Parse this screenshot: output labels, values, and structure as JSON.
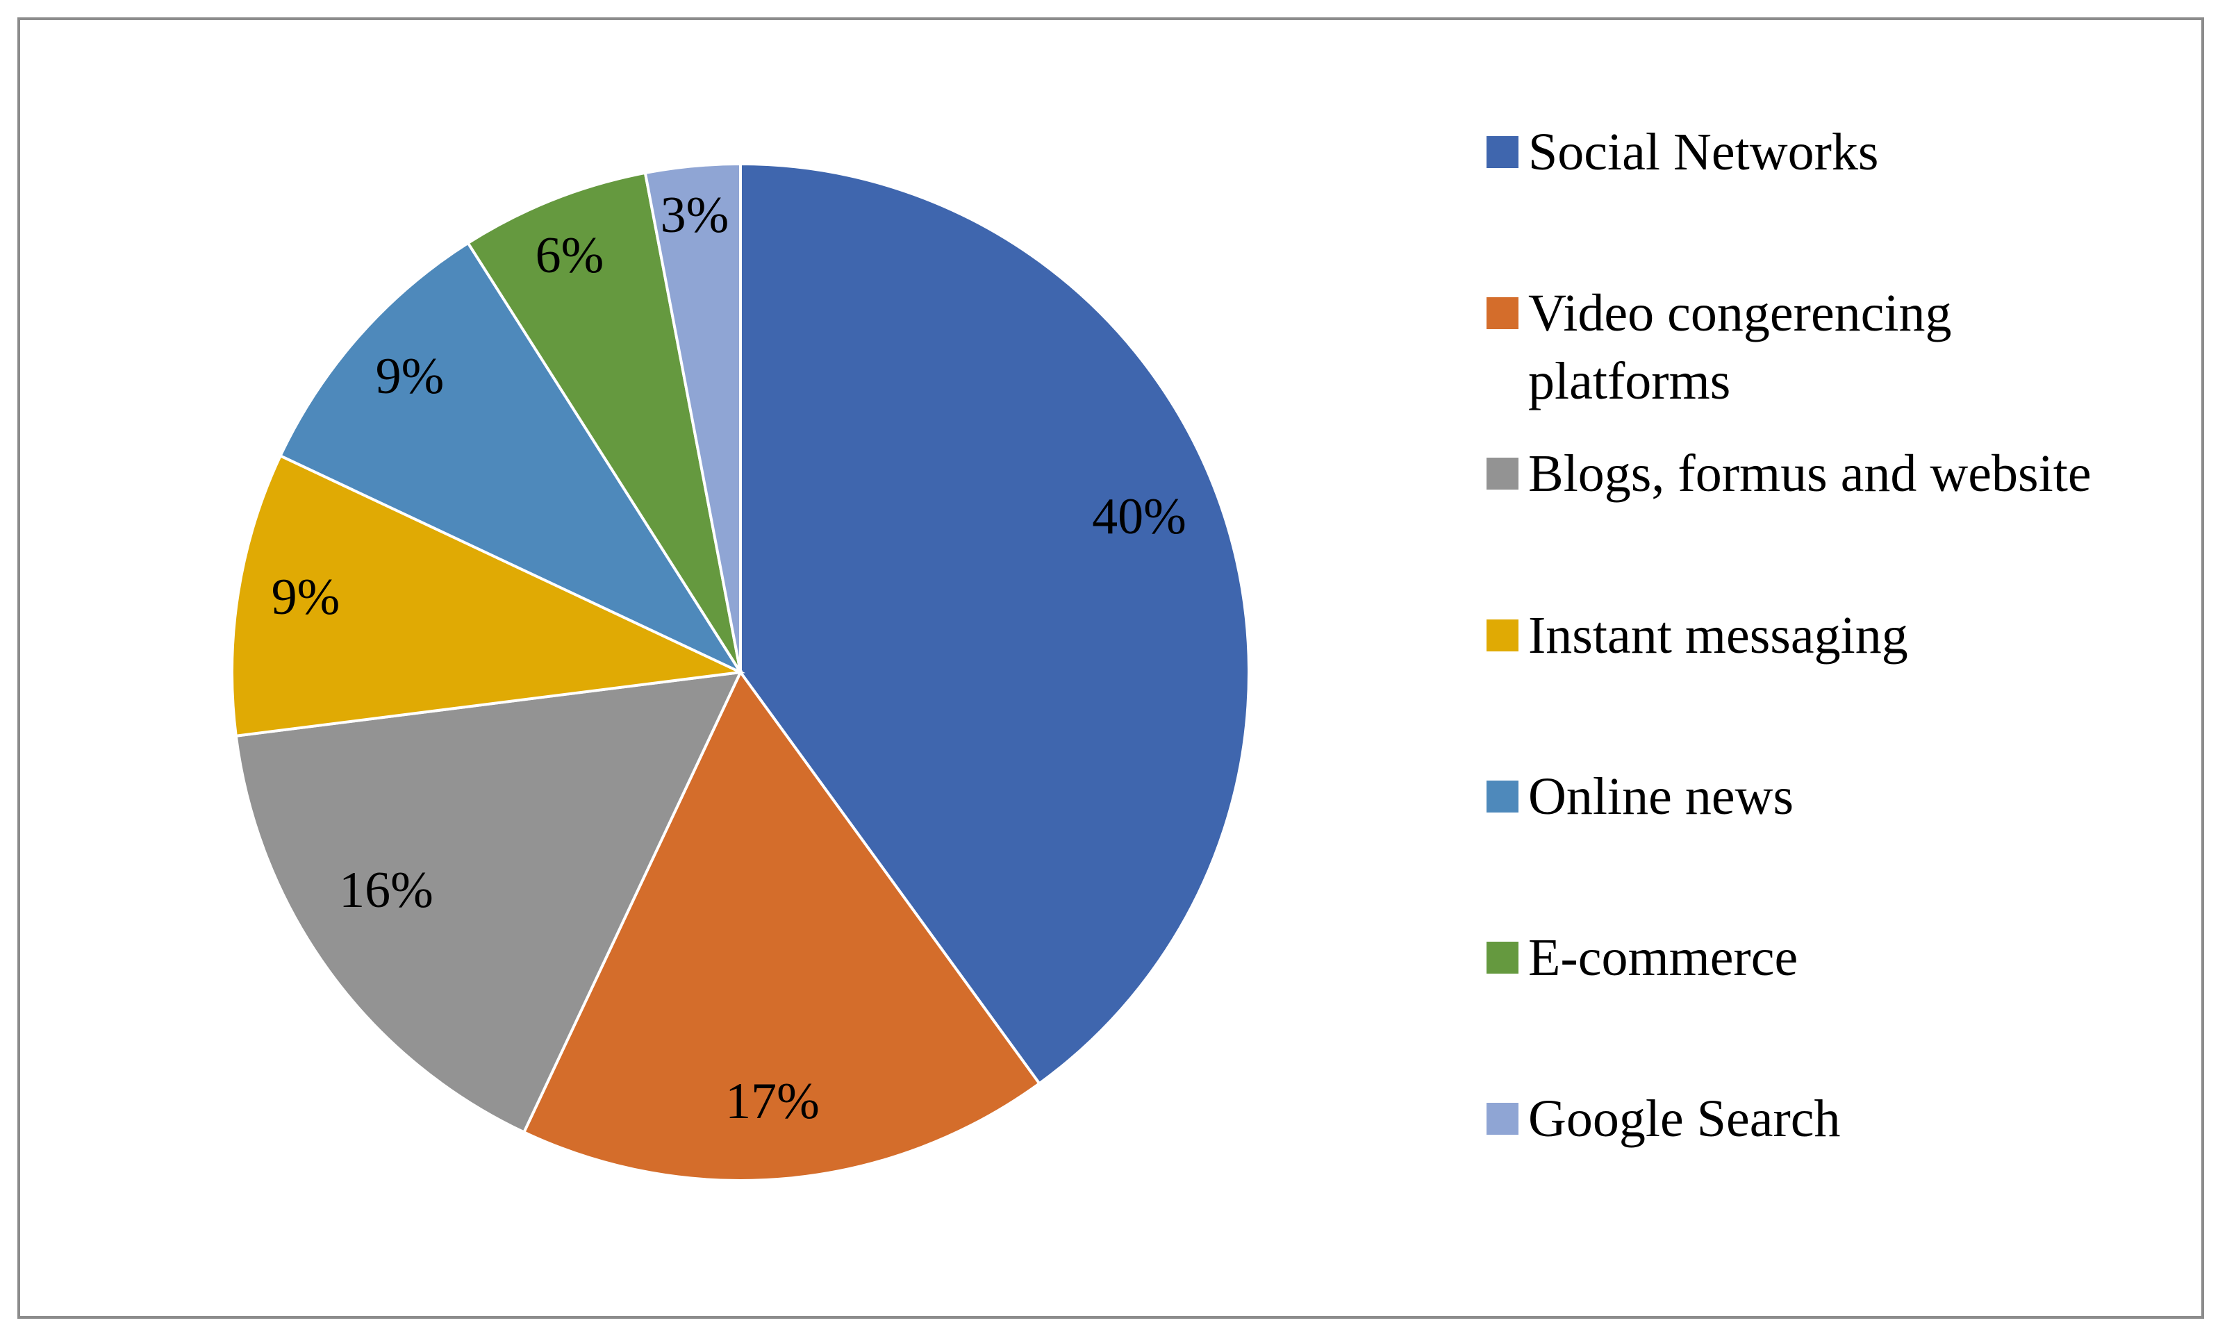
{
  "chart_data": {
    "type": "pie",
    "title": "",
    "legend_position": "right",
    "start_angle": "12 o'clock, clockwise",
    "slices": [
      {
        "label": "Social Networks",
        "value": 40,
        "display": "40%",
        "color": "#3f66ae"
      },
      {
        "label": "Video congerencing platforms",
        "value": 17,
        "display": "17%",
        "color": "#d46d2b"
      },
      {
        "label": "Blogs, formus and website",
        "value": 16,
        "display": "16%",
        "color": "#939393"
      },
      {
        "label": "Instant messaging",
        "value": 9,
        "display": "9%",
        "color": "#e0aa04"
      },
      {
        "label": "Online news",
        "value": 9,
        "display": "9%",
        "color": "#4e89bb"
      },
      {
        "label": "E-commerce",
        "value": 6,
        "display": "6%",
        "color": "#65993f"
      },
      {
        "label": "Google Search",
        "value": 3,
        "display": "3%",
        "color": "#8fa5d4"
      }
    ]
  }
}
